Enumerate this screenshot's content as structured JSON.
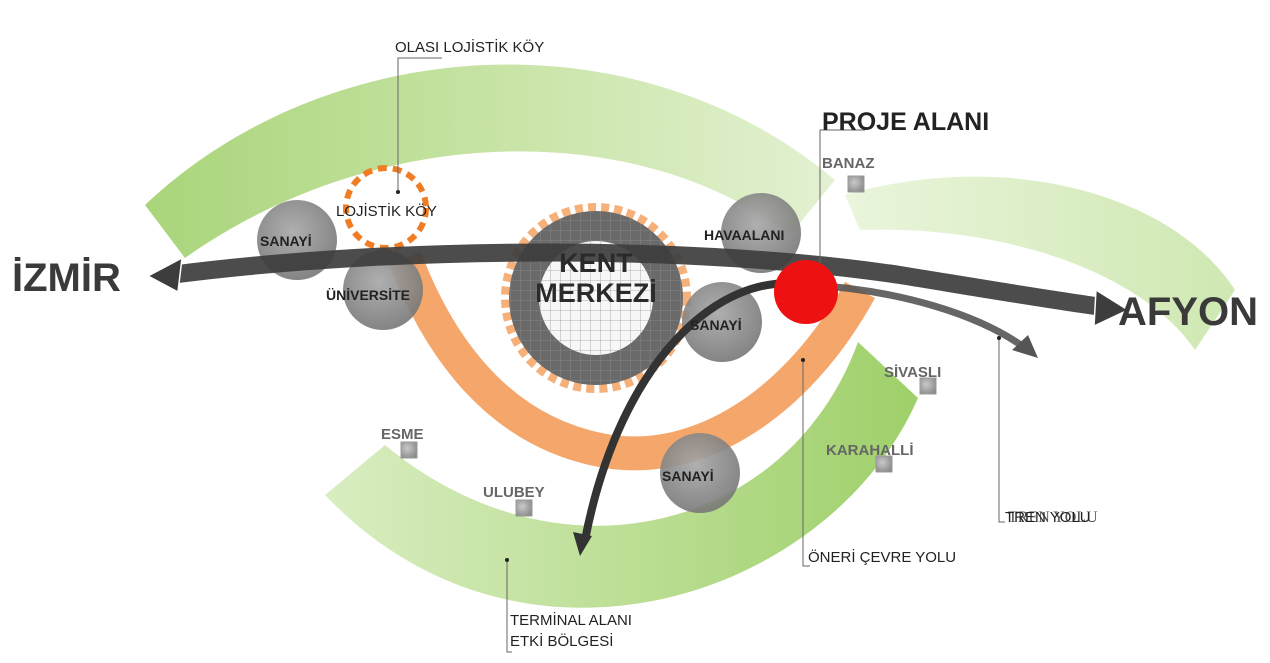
{
  "labels": {
    "izmir": "İZMİR",
    "afyon": "AFYON",
    "proje_alani": "PROJE ALANI",
    "kent_line1": "KENT",
    "kent_line2": "MERKEZİ",
    "olasi_lojistik_koy": "OLASI LOJİSTİK KÖY",
    "lojistik_koy": "LOJİSTİK KÖY",
    "sanayi_west": "SANAYİ",
    "universite": "ÜNİVERSİTE",
    "havaalani": "HAVAALANI",
    "sanayi_east": "SANAYİ",
    "sanayi_south": "SANAYİ",
    "banaz": "BANAZ",
    "sivasli": "SİVASLI",
    "karahalli": "KARAHALLİ",
    "esme": "ESME",
    "ulubey": "ULUBEY",
    "tren_yolu_a": "TREN YOLU",
    "tren_yolu_b": "TREN YOLU",
    "oneri_cevre_yolu": "ÖNERİ ÇEVRE YOLU",
    "terminal_line1": "TERMİNAL ALANI",
    "terminal_line2": "ETKİ BÖLGESİ"
  },
  "colors": {
    "green_band": "#b5d98c",
    "green_band_light": "#d6ebbb",
    "orange_ring": "#f4a263",
    "dotted_orange": "#f07c23",
    "dark_arrow": "#3d3d3d",
    "grey_circle": "#8a8a8a",
    "project_red": "#ee1111"
  }
}
